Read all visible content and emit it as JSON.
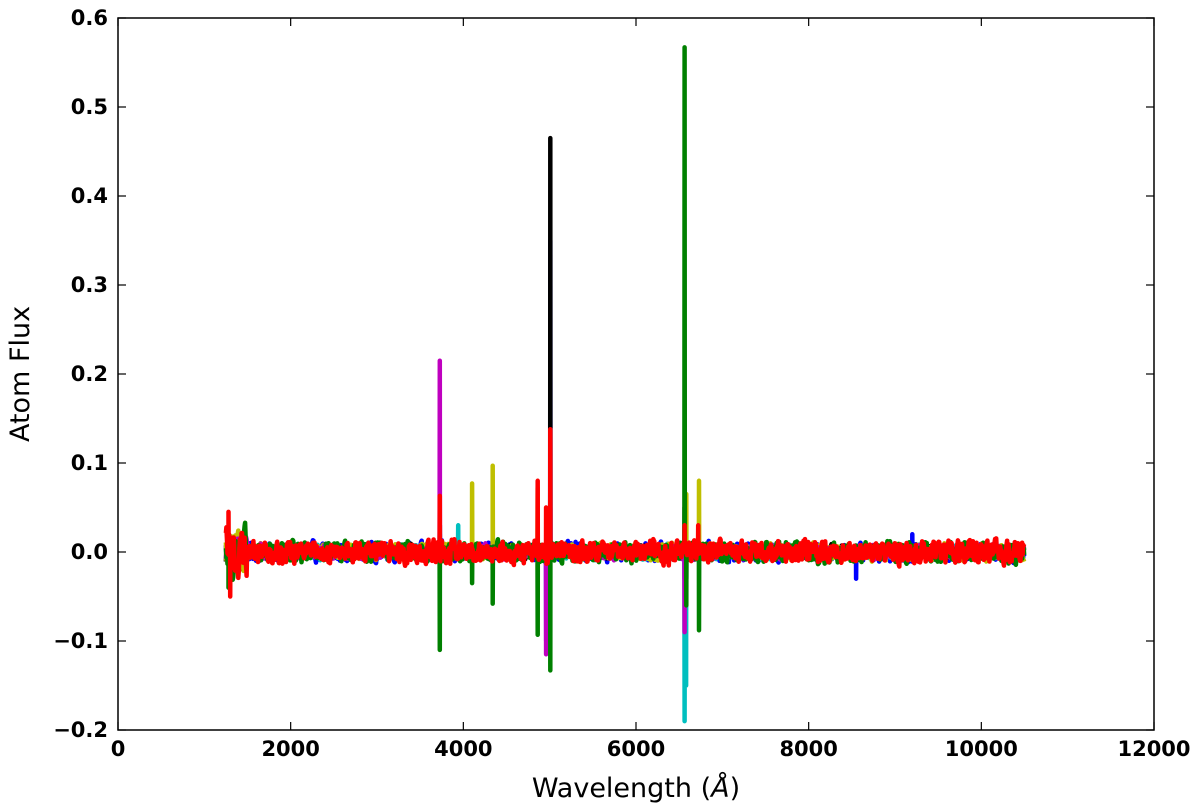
{
  "chart_data": {
    "type": "line",
    "title": "",
    "xlabel": "Wavelength",
    "xlabel_unit": "Å",
    "ylabel": "Atom Flux",
    "xlim": [
      0,
      12000
    ],
    "ylim": [
      -0.2,
      0.6
    ],
    "x_ticks": [
      0,
      2000,
      4000,
      6000,
      8000,
      10000,
      12000
    ],
    "x_tick_labels": [
      "0",
      "2000",
      "4000",
      "6000",
      "8000",
      "10000",
      "12000"
    ],
    "y_ticks": [
      -0.2,
      -0.1,
      0.0,
      0.1,
      0.2,
      0.3,
      0.4,
      0.5,
      0.6
    ],
    "y_tick_labels": [
      "−0.2",
      "−0.1",
      "0.0",
      "0.1",
      "0.2",
      "0.3",
      "0.4",
      "0.5",
      "0.6"
    ],
    "grid": false,
    "legend": "none",
    "data_range_x": [
      1250,
      10500
    ],
    "series": [
      {
        "color": "#0000ff",
        "baseline_noise": 0.008,
        "features": [
          [
            3727,
            0.02
          ],
          [
            4960,
            -0.1
          ],
          [
            5007,
            0.35
          ],
          [
            6563,
            -0.03
          ],
          [
            8550,
            -0.03
          ],
          [
            9200,
            0.02
          ]
        ]
      },
      {
        "color": "#000000",
        "baseline_noise": 0.006,
        "features": [
          [
            3727,
            0.03
          ],
          [
            4340,
            -0.02
          ],
          [
            5007,
            0.465
          ],
          [
            6563,
            0.05
          ],
          [
            6583,
            -0.03
          ]
        ]
      },
      {
        "color": "#00bfbf",
        "baseline_noise": 0.006,
        "features": [
          [
            3727,
            0.03
          ],
          [
            3940,
            0.03
          ],
          [
            5007,
            0.04
          ],
          [
            6563,
            -0.19
          ],
          [
            6580,
            -0.15
          ]
        ]
      },
      {
        "color": "#bfbf00",
        "baseline_noise": 0.007,
        "features": [
          [
            4102,
            0.077
          ],
          [
            4340,
            0.097
          ],
          [
            4861,
            0.072
          ],
          [
            6583,
            0.065
          ],
          [
            6730,
            0.08
          ]
        ]
      },
      {
        "color": "#bf00bf",
        "baseline_noise": 0.006,
        "features": [
          [
            3727,
            0.215
          ],
          [
            4959,
            -0.115
          ],
          [
            5007,
            0.05
          ],
          [
            6563,
            -0.09
          ]
        ]
      },
      {
        "color": "#008000",
        "baseline_noise": 0.009,
        "features": [
          [
            1280,
            -0.04
          ],
          [
            3727,
            -0.11
          ],
          [
            4102,
            -0.035
          ],
          [
            4340,
            -0.058
          ],
          [
            4861,
            -0.093
          ],
          [
            5007,
            -0.133
          ],
          [
            6563,
            0.567
          ],
          [
            6583,
            -0.06
          ],
          [
            6730,
            -0.088
          ]
        ]
      },
      {
        "color": "#ff0000",
        "baseline_noise": 0.01,
        "features": [
          [
            1280,
            0.045
          ],
          [
            1300,
            -0.05
          ],
          [
            3727,
            0.063
          ],
          [
            4861,
            0.08
          ],
          [
            4959,
            0.05
          ],
          [
            5007,
            0.138
          ],
          [
            6563,
            0.03
          ],
          [
            6720,
            0.03
          ]
        ]
      }
    ]
  }
}
